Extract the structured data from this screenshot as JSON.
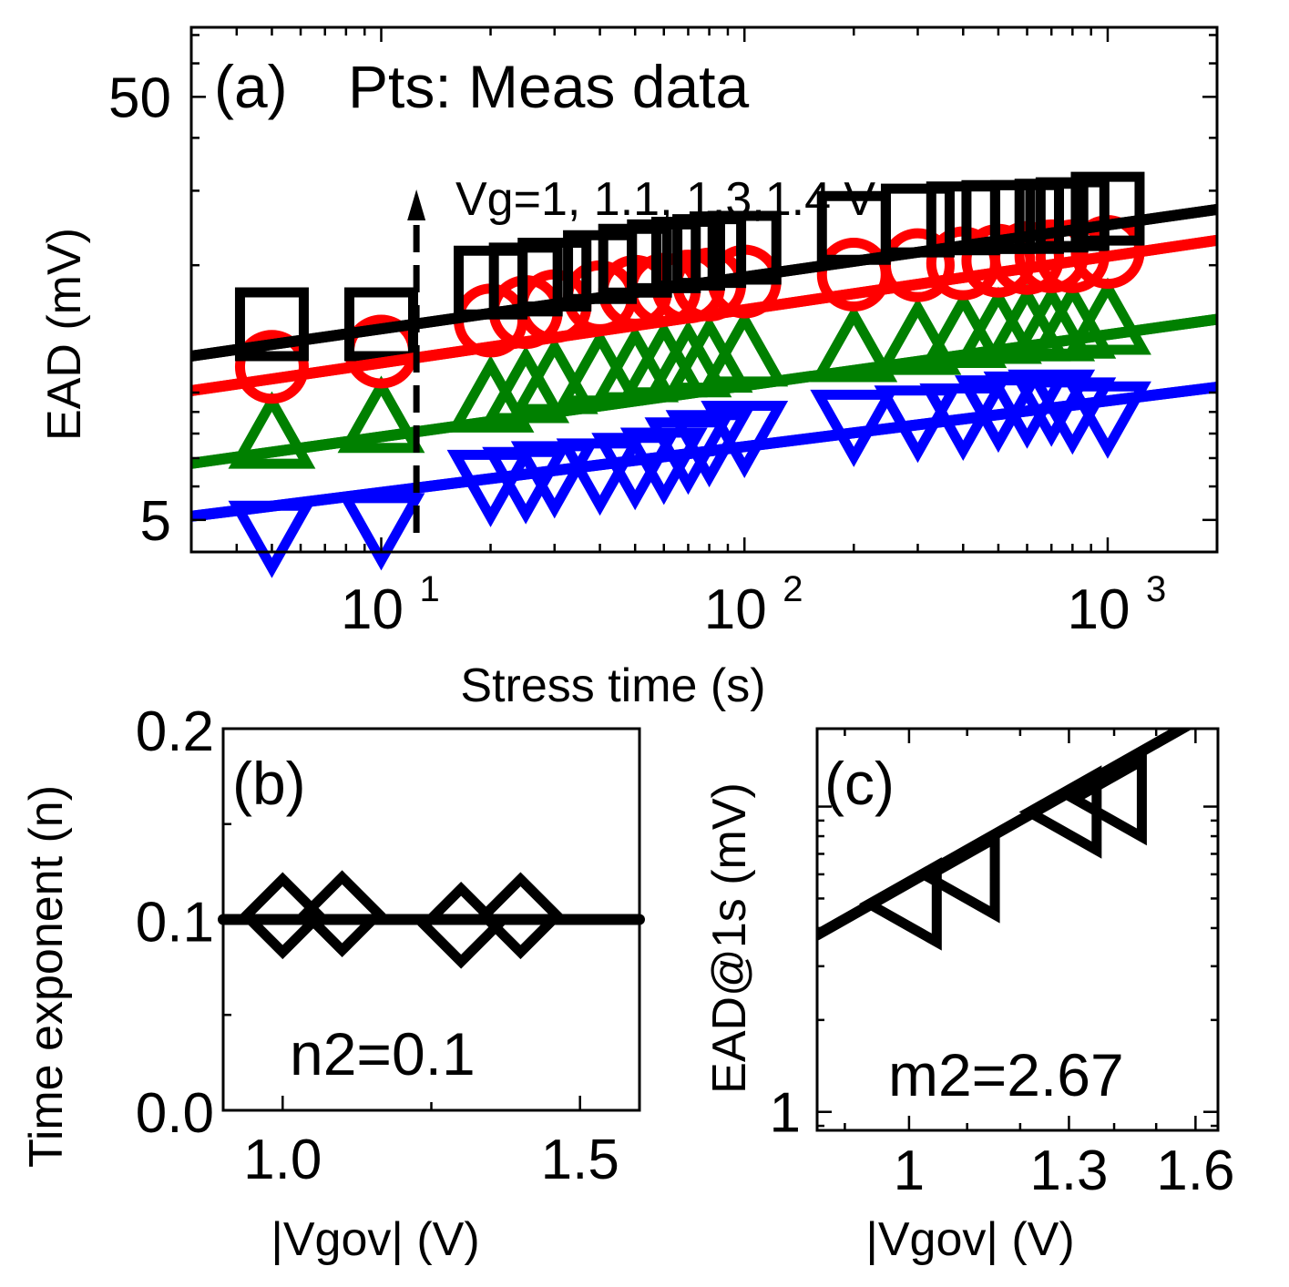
{
  "chart_data": [
    {
      "panel": "a",
      "type": "scatter",
      "panel_label": "(a)",
      "title": "Pts: Meas data",
      "xlabel": "Stress time (s)",
      "ylabel": "EAD (mV)",
      "xscale": "log",
      "yscale": "log",
      "xlim": [
        3,
        2000
      ],
      "ylim": [
        4.2,
        73
      ],
      "x_ticks": [
        {
          "value": 10,
          "base": "10",
          "exp": "1"
        },
        {
          "value": 100,
          "base": "10",
          "exp": "2"
        },
        {
          "value": 1000,
          "base": "10",
          "exp": "3"
        }
      ],
      "y_ticks": [
        {
          "value": 5,
          "label": "5"
        },
        {
          "value": 50,
          "label": "50"
        }
      ],
      "annotation": "Vg=1, 1.1, 1.3,1.4 V",
      "arrow_x": 12.5,
      "x": [
        5,
        10,
        20,
        25,
        30,
        40,
        50,
        60,
        70,
        80,
        100,
        200,
        300,
        400,
        500,
        600,
        700,
        800,
        1000
      ],
      "series": [
        {
          "name": "Vg=1.4 V",
          "marker": "square",
          "color": "#000000",
          "values": [
            14.5,
            14.5,
            18.2,
            18.5,
            19,
            19.8,
            20.5,
            21,
            21.3,
            21.6,
            22,
            24.5,
            25.5,
            25.8,
            26,
            26,
            26.2,
            26.4,
            27.2
          ],
          "fit": [
            [
              3,
              12.2
            ],
            [
              2000,
              27.1
            ]
          ]
        },
        {
          "name": "Vg=1.3 V",
          "marker": "circle",
          "color": "#ff0000",
          "values": [
            11.5,
            12.5,
            14.8,
            15.5,
            16,
            16.8,
            17.3,
            17.5,
            17.8,
            18,
            18.3,
            19,
            20,
            20.2,
            20.5,
            20.8,
            21,
            21,
            21.5
          ],
          "fit": [
            [
              3,
              10.1
            ],
            [
              2000,
              22.9
            ]
          ]
        },
        {
          "name": "Vg=1.1 V",
          "marker": "triangle-up",
          "color": "#008000",
          "values": [
            7.8,
            8.5,
            9.5,
            10,
            10.5,
            11,
            11.2,
            11.5,
            11.5,
            11.8,
            12.2,
            12.5,
            13,
            13.5,
            13.8,
            14,
            14,
            14.2,
            14.5
          ],
          "fit": [
            [
              3,
              6.8
            ],
            [
              2000,
              14.9
            ]
          ]
        },
        {
          "name": "Vg=1 V",
          "marker": "triangle-down",
          "color": "#0000ff",
          "values": [
            4.7,
            4.9,
            6.2,
            6.3,
            6.5,
            6.6,
            6.8,
            7,
            7.4,
            7.7,
            8.1,
            8.6,
            8.8,
            8.9,
            9.3,
            9.5,
            9.6,
            9.2,
            9
          ],
          "fit": [
            [
              3,
              5.1
            ],
            [
              2000,
              10.3
            ]
          ]
        }
      ]
    },
    {
      "panel": "b",
      "type": "scatter",
      "panel_label": "(b)",
      "annotation": "n2=0.1",
      "xlabel": "|Vgov| (V)",
      "ylabel": "Time exponent (n)",
      "xlim": [
        0.9,
        1.6
      ],
      "ylim": [
        0.0,
        0.2
      ],
      "x_ticks": [
        {
          "value": 1.0,
          "label": "1.0"
        },
        {
          "value": 1.5,
          "label": "1.5"
        }
      ],
      "y_ticks": [
        {
          "value": 0.0,
          "label": "0.0"
        },
        {
          "value": 0.1,
          "label": "0.1"
        },
        {
          "value": 0.2,
          "label": "0.2"
        }
      ],
      "x": [
        1.0,
        1.1,
        1.3,
        1.4
      ],
      "values": [
        0.102,
        0.103,
        0.097,
        0.102
      ],
      "marker": "diamond",
      "color": "#000000",
      "fit": [
        [
          0.9,
          0.1
        ],
        [
          1.6,
          0.1
        ]
      ]
    },
    {
      "panel": "c",
      "type": "scatter",
      "panel_label": "(c)",
      "annotation": "m2=2.67",
      "xlabel": "|Vgov| (V)",
      "ylabel": "EAD@1s (mV)",
      "xscale": "log",
      "yscale": "log",
      "xlim": [
        0.86,
        1.66
      ],
      "ylim": [
        0.87,
        18
      ],
      "x_ticks": [
        {
          "value": 1.0,
          "label": "1"
        },
        {
          "value": 1.3,
          "label": "1.3"
        },
        {
          "value": 1.6,
          "label": "1.6"
        }
      ],
      "y_ticks": [
        {
          "value": 1,
          "label": "1"
        },
        {
          "value": 10,
          "label": ""
        }
      ],
      "x": [
        1.0,
        1.1,
        1.3,
        1.4
      ],
      "values": [
        4.8,
        5.9,
        9.6,
        10.6
      ],
      "marker": "triangle-left",
      "color": "#000000",
      "fit": [
        [
          0.86,
          3.8
        ],
        [
          1.66,
          21
        ]
      ]
    }
  ]
}
